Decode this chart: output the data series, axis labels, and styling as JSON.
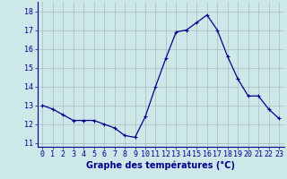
{
  "hours": [
    0,
    1,
    2,
    3,
    4,
    5,
    6,
    7,
    8,
    9,
    10,
    11,
    12,
    13,
    14,
    15,
    16,
    17,
    18,
    19,
    20,
    21,
    22,
    23
  ],
  "temps": [
    13.0,
    12.8,
    12.5,
    12.2,
    12.2,
    12.2,
    12.0,
    11.8,
    11.4,
    11.3,
    12.4,
    14.0,
    15.5,
    16.9,
    17.0,
    17.4,
    17.8,
    17.0,
    15.6,
    14.4,
    13.5,
    13.5,
    12.8,
    12.3
  ],
  "line_color": "#00008b",
  "marker": "+",
  "marker_size": 3.5,
  "marker_linewidth": 0.8,
  "bg_color": "#cce8e8",
  "grid_color": "#aabbc0",
  "xlabel": "Graphe des températures (°C)",
  "xlabel_color": "#00008b",
  "ylim": [
    10.8,
    18.5
  ],
  "yticks": [
    11,
    12,
    13,
    14,
    15,
    16,
    17,
    18
  ],
  "xticks": [
    0,
    1,
    2,
    3,
    4,
    5,
    6,
    7,
    8,
    9,
    10,
    11,
    12,
    13,
    14,
    15,
    16,
    17,
    18,
    19,
    20,
    21,
    22,
    23
  ],
  "xlim": [
    -0.5,
    23.5
  ],
  "xlabel_fontsize": 7,
  "tick_fontsize": 6,
  "axis_label_color": "#00008b",
  "border_color": "#00008b",
  "line_width": 0.9
}
